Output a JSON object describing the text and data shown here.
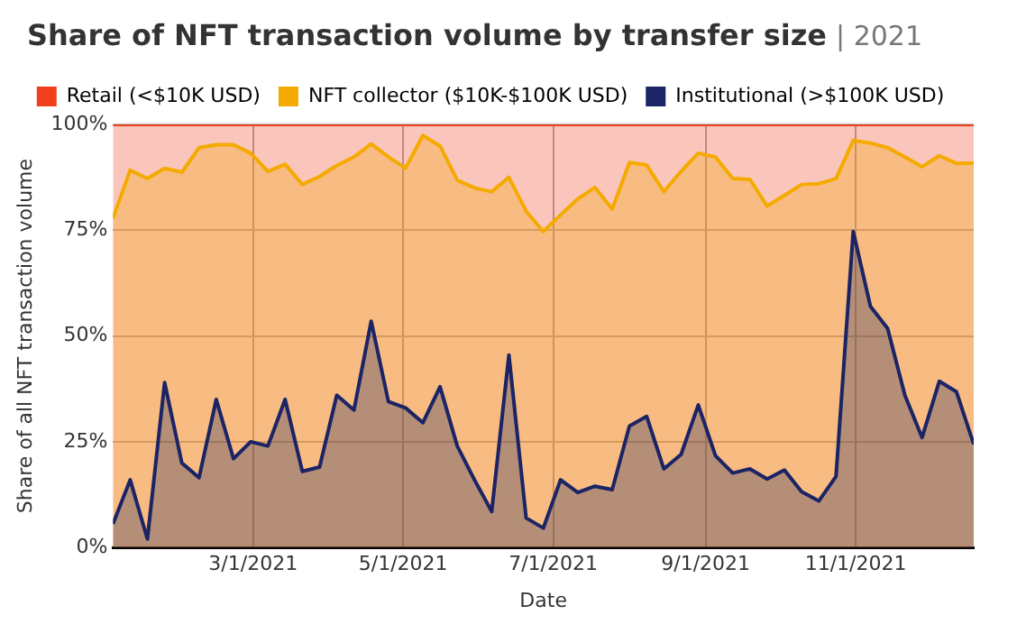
{
  "chart_data": {
    "type": "area",
    "title": "Share of NFT transaction volume by transfer size",
    "subtitle": "| 2021",
    "xlabel": "Date",
    "ylabel": "Share of all NFT transaction volume",
    "x": [
      "2021-01-03",
      "2021-01-10",
      "2021-01-17",
      "2021-01-24",
      "2021-01-31",
      "2021-02-07",
      "2021-02-14",
      "2021-02-21",
      "2021-02-28",
      "2021-03-07",
      "2021-03-14",
      "2021-03-21",
      "2021-03-28",
      "2021-04-04",
      "2021-04-11",
      "2021-04-18",
      "2021-04-25",
      "2021-05-02",
      "2021-05-09",
      "2021-05-16",
      "2021-05-23",
      "2021-05-30",
      "2021-06-06",
      "2021-06-13",
      "2021-06-20",
      "2021-06-27",
      "2021-07-04",
      "2021-07-11",
      "2021-07-18",
      "2021-07-25",
      "2021-08-01",
      "2021-08-08",
      "2021-08-15",
      "2021-08-22",
      "2021-08-29",
      "2021-09-05",
      "2021-09-12",
      "2021-09-19",
      "2021-09-26",
      "2021-10-03",
      "2021-10-10",
      "2021-10-17",
      "2021-10-24",
      "2021-10-31",
      "2021-11-07",
      "2021-11-14",
      "2021-11-21",
      "2021-11-28",
      "2021-12-05",
      "2021-12-12",
      "2021-12-19"
    ],
    "stacked": true,
    "series": [
      {
        "name": "Institutional (>$100K USD)",
        "color": "#1b2465",
        "values": [
          5.6,
          16,
          2,
          39,
          20,
          16.5,
          35,
          21,
          25,
          24,
          35,
          18,
          19,
          36,
          32.5,
          53.5,
          34.5,
          33,
          29.5,
          38,
          24,
          16,
          8.5,
          45.5,
          7,
          4.6,
          16,
          13,
          14.5,
          13.7,
          28.7,
          31,
          18.6,
          22,
          33.7,
          21.7,
          17.6,
          18.6,
          16.2,
          18.3,
          13.2,
          11,
          16.8,
          74.7,
          57,
          51.8,
          36,
          26,
          39.3,
          36.8,
          24.4
        ]
      },
      {
        "name": "NFT collector ($10K-$100K USD)",
        "color": "#f5aa00",
        "values": [
          72.2,
          73.2,
          85.2,
          50.6,
          68.7,
          78,
          60.2,
          74.2,
          68.2,
          64.9,
          55.6,
          67.8,
          68.7,
          54.3,
          59.8,
          41.9,
          57.8,
          56.7,
          67.9,
          56.9,
          62.8,
          69,
          75.6,
          42,
          72.5,
          70.1,
          62.6,
          69.4,
          70.6,
          66.3,
          62.3,
          59.4,
          65.5,
          66.9,
          59.5,
          70.6,
          69.6,
          68.4,
          64.5,
          64.9,
          72.6,
          75,
          70.4,
          21.5,
          38.6,
          42.7,
          56.3,
          64,
          53.3,
          54,
          66.5
        ]
      },
      {
        "name": "Retail (<$10K USD)",
        "color": "#f0401e",
        "values": [
          22.2,
          10.8,
          12.8,
          10.4,
          11.3,
          5.5,
          4.8,
          4.8,
          6.8,
          11.1,
          9.4,
          14.2,
          12.3,
          9.7,
          7.7,
          4.6,
          7.7,
          10.3,
          2.6,
          5.1,
          13.2,
          15,
          15.9,
          12.5,
          20.5,
          25.3,
          21.4,
          17.6,
          14.9,
          20,
          9,
          9.6,
          15.9,
          11.1,
          6.8,
          7.7,
          12.8,
          13,
          19.3,
          16.8,
          14.2,
          14,
          12.8,
          3.8,
          4.4,
          5.5,
          7.7,
          10,
          7.4,
          9.2,
          9.1
        ]
      }
    ],
    "xlim": [
      "2021-01-03",
      "2021-12-19"
    ],
    "xticks": [
      {
        "value": "2021-03-01",
        "label": "3/1/2021"
      },
      {
        "value": "2021-05-01",
        "label": "5/1/2021"
      },
      {
        "value": "2021-07-01",
        "label": "7/1/2021"
      },
      {
        "value": "2021-09-01",
        "label": "9/1/2021"
      },
      {
        "value": "2021-11-01",
        "label": "11/1/2021"
      }
    ],
    "ylim": [
      0,
      100
    ],
    "yticks": [
      {
        "value": 0,
        "label": "0%"
      },
      {
        "value": 25,
        "label": "25%"
      },
      {
        "value": 50,
        "label": "50%"
      },
      {
        "value": 75,
        "label": "75%"
      },
      {
        "value": 100,
        "label": "100%"
      }
    ],
    "grid": true,
    "legend": "top"
  }
}
